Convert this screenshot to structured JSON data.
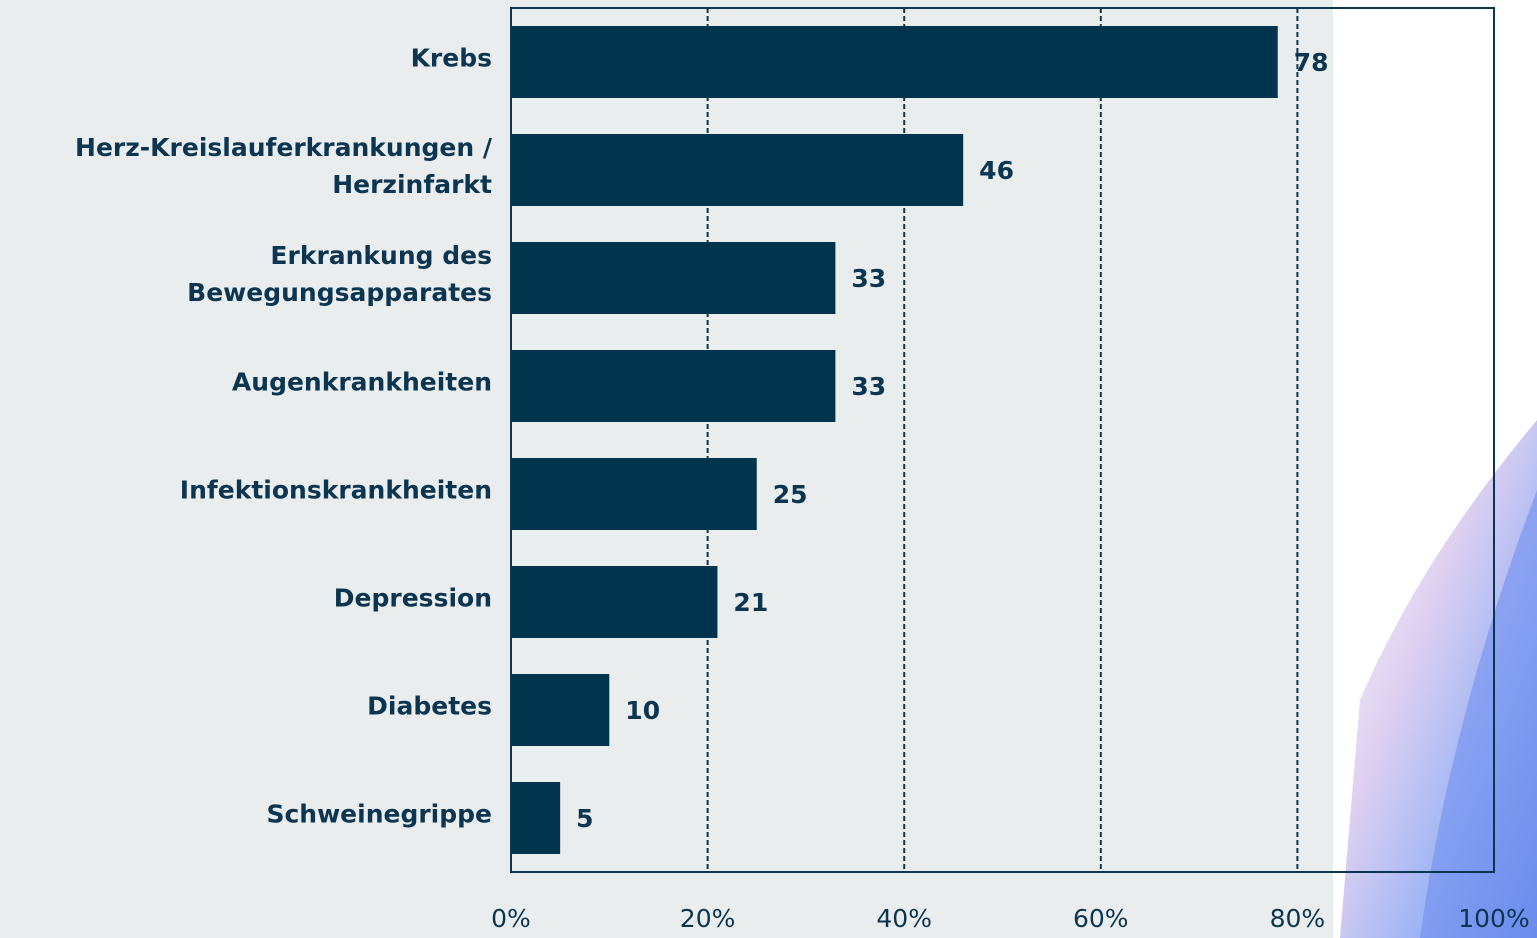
{
  "chart_data": {
    "type": "bar",
    "orientation": "horizontal",
    "categories": [
      "Krebs",
      "Herz-Kreislauferkrankungen / Herzinfarkt",
      "Erkrankung des Bewegungsapparates",
      "Augenkrankheiten",
      "Infektionskrankheiten",
      "Depression",
      "Diabetes",
      "Schweinegrippe"
    ],
    "values": [
      78,
      46,
      33,
      33,
      25,
      21,
      10,
      5
    ],
    "color": "#00344d",
    "xlim": [
      0,
      100
    ],
    "xticks": [
      {
        "value": 0,
        "label": "0%"
      },
      {
        "value": 20,
        "label": "20%"
      },
      {
        "value": 40,
        "label": "40%"
      },
      {
        "value": 60,
        "label": "60%"
      },
      {
        "value": 80,
        "label": "80%"
      },
      {
        "value": 100,
        "label": "100%"
      }
    ],
    "grid": true
  }
}
